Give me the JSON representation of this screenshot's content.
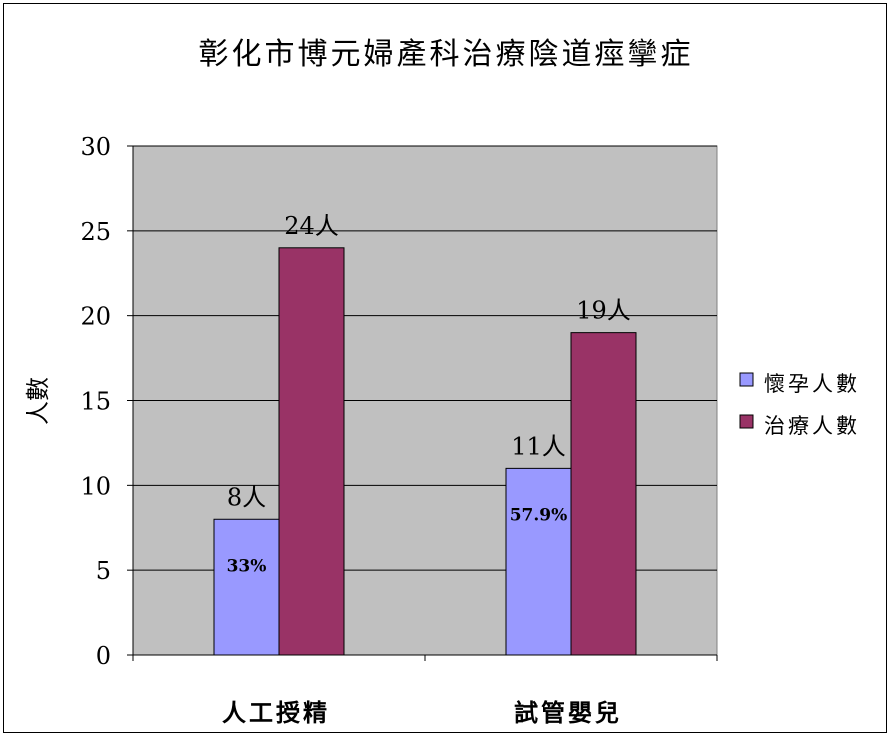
{
  "chart_data": {
    "type": "bar",
    "title": "彰化市博元婦產科治療陰道痙攣症",
    "ylabel": "人數",
    "xlabel": "",
    "categories": [
      "人工授精",
      "試管嬰兒"
    ],
    "series": [
      {
        "name": "懷孕人數",
        "values": [
          8,
          11
        ],
        "data_labels": [
          "8人",
          "11人"
        ],
        "inner_labels": [
          "33%",
          "57.9%"
        ]
      },
      {
        "name": "治療人數",
        "values": [
          24,
          19
        ],
        "data_labels": [
          "24人",
          "19人"
        ]
      }
    ],
    "ylim": [
      0,
      30
    ],
    "yticks": [
      0,
      5,
      10,
      15,
      20,
      25,
      30
    ],
    "grid": true,
    "legend_position": "right",
    "colors": {
      "plot_background": "#C0C0C0",
      "series": [
        "#9999FF",
        "#993366"
      ],
      "gridline": "#000000"
    }
  }
}
